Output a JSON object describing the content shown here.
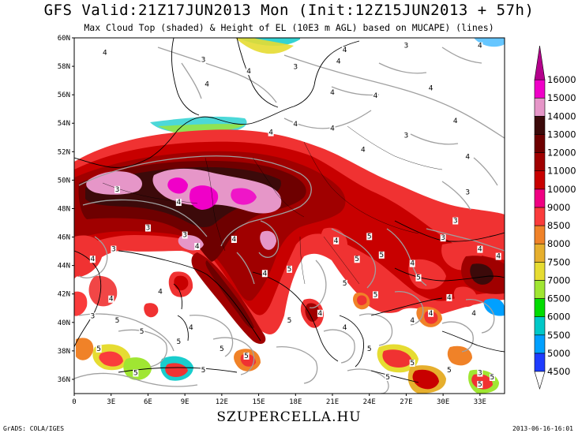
{
  "title": "GFS Valid:21Z17JUN2013 Mon (Init:12Z15JUN2013 + 57h)",
  "subtitle": "Max Cloud Top (shaded) & Height of EL (10E3 m AGL) based on MUCAPE) (lines)",
  "footer": {
    "site": "SZUPERCELLA.HU",
    "credit": "GrADS: COLA/IGES",
    "timestamp": "2013-06-16-16:01"
  },
  "map": {
    "lon_range": [
      0,
      35
    ],
    "lat_range": [
      35,
      60
    ],
    "lat_ticks": [
      "60N",
      "58N",
      "56N",
      "54N",
      "52N",
      "50N",
      "48N",
      "46N",
      "44N",
      "42N",
      "40N",
      "38N",
      "36N"
    ],
    "lon_ticks": [
      "0",
      "3E",
      "6E",
      "9E",
      "12E",
      "15E",
      "18E",
      "21E",
      "24E",
      "27E",
      "30E",
      "33E"
    ],
    "contour_labels": [
      {
        "lon": 2.5,
        "lat": 58.8,
        "text": "4"
      },
      {
        "lon": 10.5,
        "lat": 58.3,
        "text": "3"
      },
      {
        "lon": 14.2,
        "lat": 57.5,
        "text": "4"
      },
      {
        "lon": 10.8,
        "lat": 56.6,
        "text": "4"
      },
      {
        "lon": 18.0,
        "lat": 57.8,
        "text": "3"
      },
      {
        "lon": 21.5,
        "lat": 58.2,
        "text": "4"
      },
      {
        "lon": 22.0,
        "lat": 59.0,
        "text": "4"
      },
      {
        "lon": 27.0,
        "lat": 59.3,
        "text": "3"
      },
      {
        "lon": 33.0,
        "lat": 59.3,
        "text": "4"
      },
      {
        "lon": 21.0,
        "lat": 56.0,
        "text": "4"
      },
      {
        "lon": 24.5,
        "lat": 55.8,
        "text": "4"
      },
      {
        "lon": 29.0,
        "lat": 56.3,
        "text": "4"
      },
      {
        "lon": 31.0,
        "lat": 54.0,
        "text": "4"
      },
      {
        "lon": 27.0,
        "lat": 53.0,
        "text": "3"
      },
      {
        "lon": 16.0,
        "lat": 53.2,
        "text": "4"
      },
      {
        "lon": 18.0,
        "lat": 53.8,
        "text": "4"
      },
      {
        "lon": 21.0,
        "lat": 53.5,
        "text": "4"
      },
      {
        "lon": 23.5,
        "lat": 52.0,
        "text": "4"
      },
      {
        "lon": 32.0,
        "lat": 51.5,
        "text": "4"
      },
      {
        "lon": 3.5,
        "lat": 49.2,
        "text": "3"
      },
      {
        "lon": 8.5,
        "lat": 48.3,
        "text": "4"
      },
      {
        "lon": 6.0,
        "lat": 46.5,
        "text": "3"
      },
      {
        "lon": 3.2,
        "lat": 45.0,
        "text": "3"
      },
      {
        "lon": 1.5,
        "lat": 44.3,
        "text": "4"
      },
      {
        "lon": 9.0,
        "lat": 46.0,
        "text": "3"
      },
      {
        "lon": 10.0,
        "lat": 45.2,
        "text": "4"
      },
      {
        "lon": 13.0,
        "lat": 45.7,
        "text": "4"
      },
      {
        "lon": 21.3,
        "lat": 45.6,
        "text": "4"
      },
      {
        "lon": 24.0,
        "lat": 45.9,
        "text": "5"
      },
      {
        "lon": 23.0,
        "lat": 44.3,
        "text": "5"
      },
      {
        "lon": 25.0,
        "lat": 44.6,
        "text": "5"
      },
      {
        "lon": 27.5,
        "lat": 44.0,
        "text": "4"
      },
      {
        "lon": 28.0,
        "lat": 43.0,
        "text": "5"
      },
      {
        "lon": 30.0,
        "lat": 45.8,
        "text": "3"
      },
      {
        "lon": 31.0,
        "lat": 47.0,
        "text": "3"
      },
      {
        "lon": 32.0,
        "lat": 49.0,
        "text": "3"
      },
      {
        "lon": 33.0,
        "lat": 45.0,
        "text": "4"
      },
      {
        "lon": 34.5,
        "lat": 44.5,
        "text": "4"
      },
      {
        "lon": 17.5,
        "lat": 43.6,
        "text": "5"
      },
      {
        "lon": 15.5,
        "lat": 43.3,
        "text": "4"
      },
      {
        "lon": 22.0,
        "lat": 42.6,
        "text": "5"
      },
      {
        "lon": 24.5,
        "lat": 41.8,
        "text": "5"
      },
      {
        "lon": 30.5,
        "lat": 41.6,
        "text": "4"
      },
      {
        "lon": 29.0,
        "lat": 40.5,
        "text": "4"
      },
      {
        "lon": 27.5,
        "lat": 40.0,
        "text": "4"
      },
      {
        "lon": 32.5,
        "lat": 40.5,
        "text": "4"
      },
      {
        "lon": 20.0,
        "lat": 40.5,
        "text": "4"
      },
      {
        "lon": 22.0,
        "lat": 39.5,
        "text": "4"
      },
      {
        "lon": 17.5,
        "lat": 40.0,
        "text": "5"
      },
      {
        "lon": 1.5,
        "lat": 40.3,
        "text": "3"
      },
      {
        "lon": 3.5,
        "lat": 40.0,
        "text": "5"
      },
      {
        "lon": 3.0,
        "lat": 41.5,
        "text": "4"
      },
      {
        "lon": 7.0,
        "lat": 42.0,
        "text": "4"
      },
      {
        "lon": 5.5,
        "lat": 39.2,
        "text": "5"
      },
      {
        "lon": 9.5,
        "lat": 39.5,
        "text": "4"
      },
      {
        "lon": 8.5,
        "lat": 38.5,
        "text": "5"
      },
      {
        "lon": 12.0,
        "lat": 38.0,
        "text": "5"
      },
      {
        "lon": 10.5,
        "lat": 36.5,
        "text": "5"
      },
      {
        "lon": 5.0,
        "lat": 36.3,
        "text": "5"
      },
      {
        "lon": 2.0,
        "lat": 38.0,
        "text": "5"
      },
      {
        "lon": 14.0,
        "lat": 37.5,
        "text": "5"
      },
      {
        "lon": 24.0,
        "lat": 38.0,
        "text": "5"
      },
      {
        "lon": 25.5,
        "lat": 36.0,
        "text": "5"
      },
      {
        "lon": 27.5,
        "lat": 37.0,
        "text": "5"
      },
      {
        "lon": 30.5,
        "lat": 36.5,
        "text": "5"
      },
      {
        "lon": 33.0,
        "lat": 36.3,
        "text": "3"
      },
      {
        "lon": 34.0,
        "lat": 36.0,
        "text": "5"
      },
      {
        "lon": 33.0,
        "lat": 35.5,
        "text": "5"
      }
    ]
  },
  "colorbar": {
    "levels": [
      "4500",
      "5000",
      "5500",
      "6000",
      "6500",
      "7000",
      "7500",
      "8000",
      "8500",
      "9000",
      "10000",
      "11000",
      "12000",
      "13000",
      "14000",
      "15000",
      "16000"
    ],
    "colors": [
      "#1e3cff",
      "#00a0ff",
      "#00c8c8",
      "#00dc00",
      "#a0e632",
      "#e6dc32",
      "#e6af2d",
      "#f08228",
      "#fa3c3c",
      "#f00082",
      "#c80000",
      "#a00000",
      "#6e0000",
      "#3c0a0a",
      "#e696c8",
      "#f000c8",
      "#b4008c"
    ],
    "color_labels": [
      "4500-5000",
      "5000-5500",
      "5500-6000",
      "6000-6500",
      "6500-7000",
      "7000-7500",
      "7500-8000",
      "8000-8500",
      "8500-9000",
      "9000-10000",
      "10000-11000",
      "11000-12000",
      "12000-13000",
      "13000-14000",
      "14000-15000",
      "15000-16000",
      ">16000"
    ]
  },
  "colors": {
    "contour_line": "#a0a0a0",
    "coastline": "#000000"
  }
}
